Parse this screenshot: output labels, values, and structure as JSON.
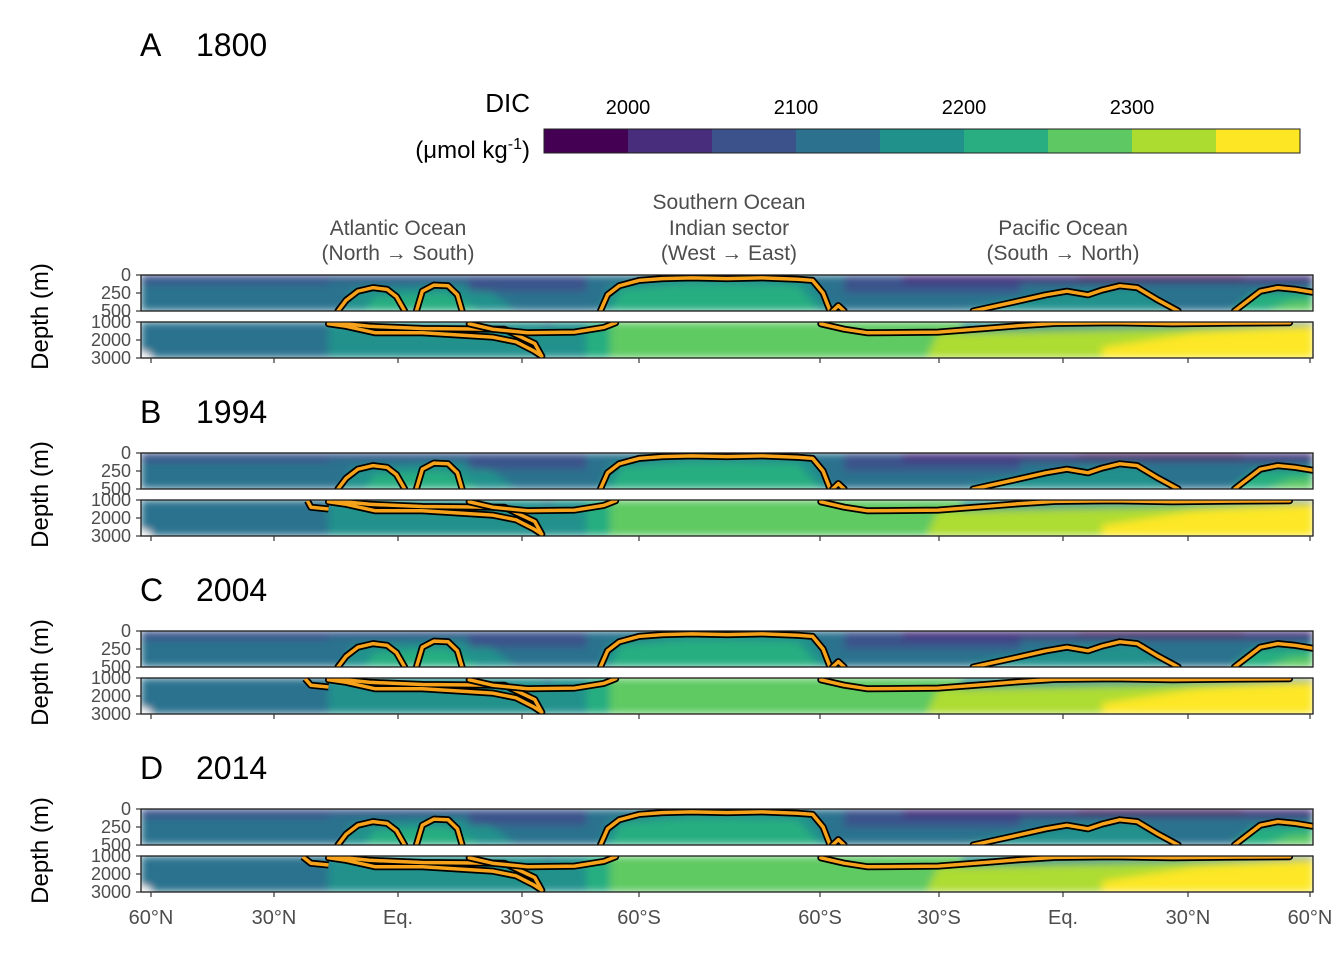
{
  "chart_data": {
    "type": "heatmap",
    "variable": "DIC",
    "legend": {
      "title_line1": "DIC",
      "unit_prefix": "(μmol kg",
      "unit_exp": "-1",
      "unit_suffix": ")",
      "ticks": [
        {
          "value": 2000,
          "label": "2000"
        },
        {
          "value": 2100,
          "label": "2100"
        },
        {
          "value": 2200,
          "label": "2200"
        },
        {
          "value": 2300,
          "label": "2300"
        }
      ],
      "range": [
        1950,
        2400
      ],
      "bin_width": 50,
      "colors": [
        "#440154",
        "#472d7b",
        "#3b528b",
        "#2c728e",
        "#21918c",
        "#28ae80",
        "#5ec962",
        "#addc30",
        "#fde725"
      ],
      "placement": "top"
    },
    "sections": [
      {
        "label": "Atlantic Ocean",
        "sublabel": "(North → South)"
      },
      {
        "label": "Southern Ocean",
        "label2": "Indian sector",
        "sublabel": "(West → East)"
      },
      {
        "label": "Pacific Ocean",
        "sublabel": "(South → North)"
      }
    ],
    "x_ticks": [
      "60°N",
      "30°N",
      "Eq.",
      "30°S",
      "60°S",
      "60°S",
      "30°S",
      "Eq.",
      "30°N",
      "60°N"
    ],
    "y_axis": {
      "label": "Depth (m)",
      "upper_ticks": [
        "0",
        "250",
        "500"
      ],
      "upper_range": [
        0,
        500
      ],
      "lower_ticks": [
        "1000",
        "2000",
        "3000"
      ],
      "lower_range": [
        500,
        3000
      ]
    },
    "contour_value": 2200,
    "contour_color": "#f7a21b",
    "panels": [
      {
        "letter": "A",
        "year": "1800"
      },
      {
        "letter": "B",
        "year": "1994"
      },
      {
        "letter": "C",
        "year": "2004"
      },
      {
        "letter": "D",
        "year": "2014"
      }
    ]
  }
}
